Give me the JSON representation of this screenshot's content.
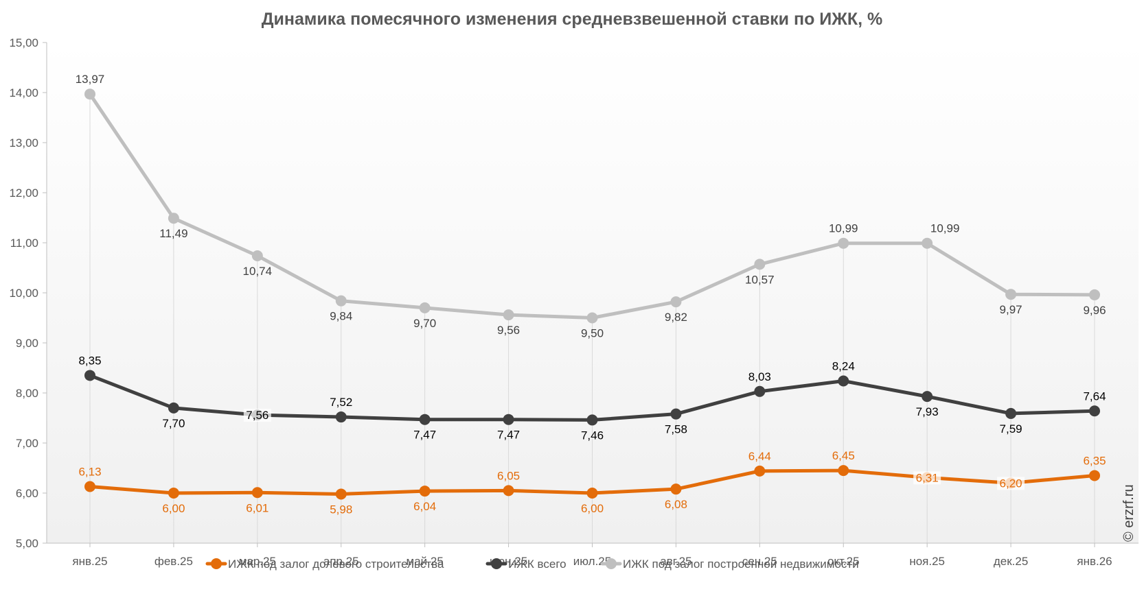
{
  "chart_data": {
    "type": "line",
    "title": "Динамика помесячного изменения средневзвешенной ставки по ИЖК, %",
    "categories": [
      "янв.25",
      "фев.25",
      "мар.25",
      "апр.25",
      "май.25",
      "июн.25",
      "июл.25",
      "авг.25",
      "сен.25",
      "окт.25",
      "ноя.25",
      "дек.25",
      "янв.26"
    ],
    "ylim": [
      5,
      15
    ],
    "yticks": [
      "5,00",
      "6,00",
      "7,00",
      "8,00",
      "9,00",
      "10,00",
      "11,00",
      "12,00",
      "13,00",
      "14,00",
      "15,00"
    ],
    "grid": "vertical drop lines",
    "legend_position": "bottom",
    "series": [
      {
        "name": "ИЖК под залог долевого строительства",
        "color": "#e36c0a",
        "values": [
          6.13,
          6.0,
          6.01,
          5.98,
          6.04,
          6.05,
          6.0,
          6.08,
          6.44,
          6.45,
          6.31,
          6.2,
          6.35
        ],
        "labels": [
          "6,13",
          "6,00",
          "6,01",
          "5,98",
          "6,04",
          "6,05",
          "6,00",
          "6,08",
          "6,44",
          "6,45",
          "6,31",
          "6,20",
          "6,35"
        ],
        "label_pos": [
          "above",
          "below",
          "below",
          "below",
          "below",
          "above",
          "below",
          "below",
          "above",
          "above",
          "center",
          "center",
          "above"
        ]
      },
      {
        "name": "ИЖК всего",
        "color": "#404040",
        "values": [
          8.35,
          7.7,
          7.56,
          7.52,
          7.47,
          7.47,
          7.46,
          7.58,
          8.03,
          8.24,
          7.93,
          7.59,
          7.64
        ],
        "labels": [
          "8,35",
          "7,70",
          "7,56",
          "7,52",
          "7,47",
          "7,47",
          "7,46",
          "7,58",
          "8,03",
          "8,24",
          "7,93",
          "7,59",
          "7,64"
        ],
        "label_pos": [
          "above",
          "below",
          "center",
          "above",
          "below",
          "below",
          "below",
          "below",
          "above",
          "above",
          "below",
          "below",
          "above"
        ]
      },
      {
        "name": "ИЖК под залог построенной недвижимости",
        "color": "#bfbfbf",
        "values": [
          13.97,
          11.49,
          10.74,
          9.84,
          9.7,
          9.56,
          9.5,
          9.82,
          10.57,
          10.99,
          10.99,
          9.97,
          9.96
        ],
        "labels": [
          "13,97",
          "11,49",
          "10,74",
          "9,84",
          "9,70",
          "9,56",
          "9,50",
          "9,82",
          "10,57",
          "10,99",
          "10,99",
          "9,97",
          "9,96"
        ],
        "label_pos": [
          "above",
          "below",
          "below",
          "below",
          "below",
          "below",
          "below",
          "below",
          "below",
          "above",
          "above-right",
          "below",
          "below"
        ]
      }
    ]
  },
  "watermark": "© erzrf.ru"
}
